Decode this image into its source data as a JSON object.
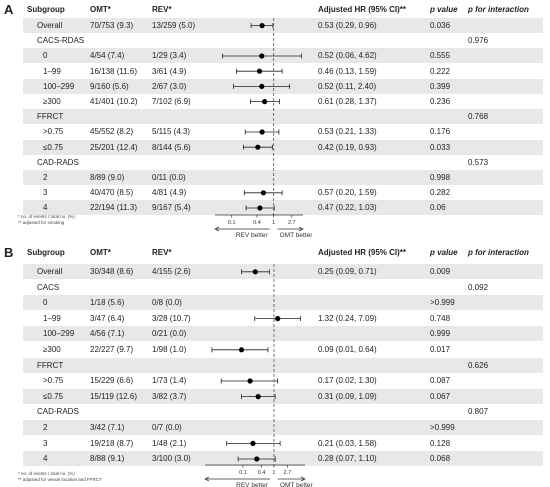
{
  "chart_data": [
    {
      "type": "forest",
      "panel_label": "A",
      "columns": [
        "Subgroup",
        "OMT*",
        "REV*",
        "Adjusted HR (95% CI)**",
        "p value",
        "p for interaction"
      ],
      "rows": [
        {
          "label": "Overall",
          "omt": "70/753 (9.3)",
          "rev": "13/259 (5.0)",
          "hr_text": "0.53 (0.29, 0.96)",
          "p": "0.036",
          "p_int": "",
          "hr": 0.53,
          "lo": 0.29,
          "hi": 0.96,
          "indent": false
        },
        {
          "label": "CACS-RDAS",
          "omt": "",
          "rev": "",
          "hr_text": "",
          "p": "",
          "p_int": "0.976",
          "hr": null,
          "lo": null,
          "hi": null,
          "indent": false
        },
        {
          "label": "0",
          "omt": "4/54 (7.4)",
          "rev": "1/29 (3.4)",
          "hr_text": "0.52 (0.06, 4.62)",
          "p": "0.555",
          "p_int": "",
          "hr": 0.52,
          "lo": 0.06,
          "hi": 4.62,
          "indent": true
        },
        {
          "label": "1–99",
          "omt": "16/138 (11.6)",
          "rev": "3/61 (4.9)",
          "hr_text": "0.46 (0.13, 1.59)",
          "p": "0.222",
          "p_int": "",
          "hr": 0.46,
          "lo": 0.13,
          "hi": 1.59,
          "indent": true
        },
        {
          "label": "100–299",
          "omt": "9/160 (5.6)",
          "rev": "2/67 (3.0)",
          "hr_text": "0.52 (0.11, 2.40)",
          "p": "0.399",
          "p_int": "",
          "hr": 0.52,
          "lo": 0.11,
          "hi": 2.4,
          "indent": true
        },
        {
          "label": "≥300",
          "omt": "41/401 (10.2)",
          "rev": "7/102 (6.9)",
          "hr_text": "0.61 (0.28, 1.37)",
          "p": "0.236",
          "p_int": "",
          "hr": 0.61,
          "lo": 0.28,
          "hi": 1.37,
          "indent": true
        },
        {
          "label": "FFRCT",
          "omt": "",
          "rev": "",
          "hr_text": "",
          "p": "",
          "p_int": "0.768",
          "hr": null,
          "lo": null,
          "hi": null,
          "indent": false
        },
        {
          "label": ">0.75",
          "omt": "45/552 (8.2)",
          "rev": "5/115 (4.3)",
          "hr_text": "0.53 (0.21, 1.33)",
          "p": "0.176",
          "p_int": "",
          "hr": 0.53,
          "lo": 0.21,
          "hi": 1.33,
          "indent": true
        },
        {
          "label": "≤0.75",
          "omt": "25/201 (12.4)",
          "rev": "8/144 (5.6)",
          "hr_text": "0.42 (0.19, 0.93)",
          "p": "0.033",
          "p_int": "",
          "hr": 0.42,
          "lo": 0.19,
          "hi": 0.93,
          "indent": true
        },
        {
          "label": "CAD-RADS",
          "omt": "",
          "rev": "",
          "hr_text": "",
          "p": "",
          "p_int": "0.573",
          "hr": null,
          "lo": null,
          "hi": null,
          "indent": false
        },
        {
          "label": "2",
          "omt": "8/89 (9.0)",
          "rev": "0/11 (0.0)",
          "hr_text": "",
          "p": "0.998",
          "p_int": "",
          "hr": null,
          "lo": null,
          "hi": null,
          "indent": true
        },
        {
          "label": "3",
          "omt": "40/470 (8.5)",
          "rev": "4/81 (4.9)",
          "hr_text": "0.57 (0.20, 1.59)",
          "p": "0.282",
          "p_int": "",
          "hr": 0.57,
          "lo": 0.2,
          "hi": 1.59,
          "indent": true
        },
        {
          "label": "4",
          "omt": "22/194 (11.3)",
          "rev": "9/167 (5.4)",
          "hr_text": "0.47 (0.22, 1.03)",
          "p": "0.06",
          "p_int": "",
          "hr": 0.47,
          "lo": 0.22,
          "hi": 1.03,
          "indent": true
        }
      ],
      "x_ticks": [
        0.1,
        0.4,
        1,
        2.7
      ],
      "x_tick_labels": [
        "0.1",
        "0.4",
        "1",
        "2.7"
      ],
      "x_scale": "log",
      "xlim": [
        0.04,
        5
      ],
      "reference_line": 1,
      "direction_left": "REV better",
      "direction_right": "OMT better",
      "footnotes": [
        "* no. of events / total no. (%)",
        "** adjusted for smoking"
      ]
    },
    {
      "type": "forest",
      "panel_label": "B",
      "columns": [
        "Subgroup",
        "OMT*",
        "REV*",
        "Adjusted HR (95% CI)**",
        "p value",
        "p for interaction"
      ],
      "rows": [
        {
          "label": "Overall",
          "omt": "30/348 (8.6)",
          "rev": "4/155 (2.6)",
          "hr_text": "0.25 (0.09, 0.71)",
          "p": "0.009",
          "p_int": "",
          "hr": 0.25,
          "lo": 0.09,
          "hi": 0.71,
          "indent": false
        },
        {
          "label": "CACS",
          "omt": "",
          "rev": "",
          "hr_text": "",
          "p": "",
          "p_int": "0.092",
          "hr": null,
          "lo": null,
          "hi": null,
          "indent": false
        },
        {
          "label": "0",
          "omt": "1/18 (5.6)",
          "rev": "0/8 (0.0)",
          "hr_text": "",
          "p": ">0.999",
          "p_int": "",
          "hr": null,
          "lo": null,
          "hi": null,
          "indent": true
        },
        {
          "label": "1–99",
          "omt": "3/47 (6.4)",
          "rev": "3/28 (10.7)",
          "hr_text": "1.32 (0.24, 7.09)",
          "p": "0.748",
          "p_int": "",
          "hr": 1.32,
          "lo": 0.24,
          "hi": 7.09,
          "indent": true
        },
        {
          "label": "100–299",
          "omt": "4/56 (7.1)",
          "rev": "0/21 (0.0)",
          "hr_text": "",
          "p": "0.999",
          "p_int": "",
          "hr": null,
          "lo": null,
          "hi": null,
          "indent": true
        },
        {
          "label": "≥300",
          "omt": "22/227 (9.7)",
          "rev": "1/98 (1.0)",
          "hr_text": "0.09 (0.01, 0.64)",
          "p": "0.017",
          "p_int": "",
          "hr": 0.09,
          "lo": 0.01,
          "hi": 0.64,
          "indent": true
        },
        {
          "label": "FFRCT",
          "omt": "",
          "rev": "",
          "hr_text": "",
          "p": "",
          "p_int": "0.626",
          "hr": null,
          "lo": null,
          "hi": null,
          "indent": false
        },
        {
          "label": ">0.75",
          "omt": "15/229 (6.6)",
          "rev": "1/73 (1.4)",
          "hr_text": "0.17 (0.02, 1.30)",
          "p": "0.087",
          "p_int": "",
          "hr": 0.17,
          "lo": 0.02,
          "hi": 1.3,
          "indent": true
        },
        {
          "label": "≤0.75",
          "omt": "15/119 (12.6)",
          "rev": "3/82 (3.7)",
          "hr_text": "0.31 (0.09, 1.09)",
          "p": "0.067",
          "p_int": "",
          "hr": 0.31,
          "lo": 0.09,
          "hi": 1.09,
          "indent": true
        },
        {
          "label": "CAD-RADS",
          "omt": "",
          "rev": "",
          "hr_text": "",
          "p": "",
          "p_int": "0.807",
          "hr": null,
          "lo": null,
          "hi": null,
          "indent": false
        },
        {
          "label": "2",
          "omt": "3/42 (7.1)",
          "rev": "0/7 (0.0)",
          "hr_text": "",
          "p": ">0.999",
          "p_int": "",
          "hr": null,
          "lo": null,
          "hi": null,
          "indent": true
        },
        {
          "label": "3",
          "omt": "19/218 (8.7)",
          "rev": "1/48 (2.1)",
          "hr_text": "0.21 (0.03, 1.58)",
          "p": "0.128",
          "p_int": "",
          "hr": 0.21,
          "lo": 0.03,
          "hi": 1.58,
          "indent": true
        },
        {
          "label": "4",
          "omt": "8/88 (9.1)",
          "rev": "3/100 (3.0)",
          "hr_text": "0.28 (0.07, 1.10)",
          "p": "0.068",
          "p_int": "",
          "hr": 0.28,
          "lo": 0.07,
          "hi": 1.1,
          "indent": true
        }
      ],
      "x_ticks": [
        0.1,
        0.4,
        1,
        2.7
      ],
      "x_tick_labels": [
        "0.1",
        "0.4",
        "1",
        "2.7"
      ],
      "x_scale": "log",
      "xlim": [
        0.006,
        10
      ],
      "reference_line": 1,
      "direction_left": "REV better",
      "direction_right": "OMT better",
      "footnotes": [
        "* no. of events / total no. (%)",
        "** adjusted for vessel location and FFRCT"
      ]
    }
  ]
}
